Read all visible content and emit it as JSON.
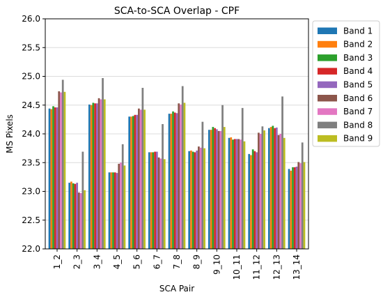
{
  "chart_data": {
    "type": "bar",
    "title": "SCA-to-SCA Overlap - CPF",
    "xlabel": "SCA Pair",
    "ylabel": "MS Pixels",
    "ylim": [
      22.0,
      26.0
    ],
    "yticks": [
      "22.0",
      "22.5",
      "23.0",
      "23.5",
      "24.0",
      "24.5",
      "25.0",
      "25.5",
      "26.0"
    ],
    "grid": "horizontal",
    "legend_position": "right",
    "categories": [
      "1_2",
      "2_3",
      "3_4",
      "4_5",
      "5_6",
      "6_7",
      "7_8",
      "8_9",
      "9_10",
      "10_11",
      "11_12",
      "12_13",
      "13_14"
    ],
    "series": [
      {
        "name": "Band 1",
        "color": "#1f77b4",
        "values": [
          24.44,
          23.15,
          24.51,
          23.33,
          24.3,
          23.68,
          24.35,
          23.7,
          24.07,
          23.93,
          23.65,
          24.1,
          23.39
        ]
      },
      {
        "name": "Band 2",
        "color": "#ff7f0e",
        "values": [
          24.43,
          23.17,
          24.5,
          23.33,
          24.3,
          23.68,
          24.35,
          23.71,
          24.07,
          23.94,
          23.63,
          24.12,
          23.36
        ]
      },
      {
        "name": "Band 3",
        "color": "#2ca02c",
        "values": [
          24.48,
          23.14,
          24.54,
          23.33,
          24.31,
          23.68,
          24.39,
          23.69,
          24.12,
          23.9,
          23.73,
          24.14,
          23.42
        ]
      },
      {
        "name": "Band 4",
        "color": "#d62728",
        "values": [
          24.46,
          23.13,
          24.53,
          23.33,
          24.33,
          23.69,
          24.37,
          23.68,
          24.1,
          23.91,
          23.7,
          24.1,
          23.42
        ]
      },
      {
        "name": "Band 5",
        "color": "#9467bd",
        "values": [
          24.46,
          23.15,
          24.53,
          23.32,
          24.33,
          23.69,
          24.36,
          23.71,
          24.08,
          23.91,
          23.68,
          24.11,
          23.43
        ]
      },
      {
        "name": "Band 6",
        "color": "#8c564b",
        "values": [
          24.74,
          22.98,
          24.62,
          23.48,
          24.44,
          23.59,
          24.53,
          23.78,
          24.05,
          23.91,
          24.02,
          23.98,
          23.51
        ]
      },
      {
        "name": "Band 7",
        "color": "#e377c2",
        "values": [
          24.72,
          22.97,
          24.6,
          23.5,
          24.42,
          23.57,
          24.51,
          23.76,
          24.05,
          23.9,
          24.0,
          24.0,
          23.49
        ]
      },
      {
        "name": "Band 8",
        "color": "#7f7f7f",
        "values": [
          24.94,
          23.69,
          24.97,
          23.82,
          24.8,
          24.17,
          24.83,
          24.21,
          24.5,
          24.45,
          24.13,
          24.65,
          23.85
        ]
      },
      {
        "name": "Band 9",
        "color": "#bcbd22",
        "values": [
          24.73,
          23.02,
          24.6,
          23.45,
          24.42,
          23.56,
          24.54,
          23.75,
          24.12,
          23.87,
          24.06,
          23.93,
          23.51
        ]
      }
    ]
  }
}
